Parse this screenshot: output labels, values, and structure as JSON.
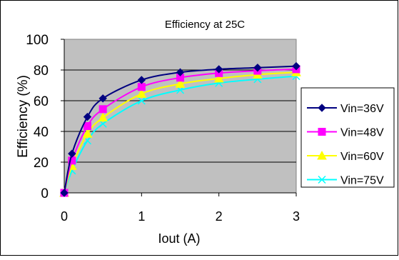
{
  "chart_data": {
    "type": "line",
    "title": "Efficiency at 25C",
    "xlabel": "Iout (A)",
    "ylabel": "Efficiency (%)",
    "xlim": [
      0,
      3
    ],
    "ylim": [
      0,
      100
    ],
    "xticks": [
      "0",
      "1",
      "2",
      "3"
    ],
    "yticks": [
      "0",
      "20",
      "40",
      "60",
      "80",
      "100"
    ],
    "grid": true,
    "legend_position": "right",
    "plot_background": "#c0c0c0",
    "x": [
      0,
      0.1,
      0.3,
      0.5,
      1.0,
      1.5,
      2.0,
      2.5,
      3.0
    ],
    "series": [
      {
        "name": "Vin=36V",
        "color": "#000080",
        "marker": "diamond",
        "values": [
          0,
          25.5,
          49.5,
          61.5,
          73.5,
          78.5,
          80.5,
          81.5,
          82.5
        ]
      },
      {
        "name": "Vin=48V",
        "color": "#ff00ff",
        "marker": "square",
        "values": [
          0,
          21,
          43.5,
          54.5,
          69,
          75,
          78,
          79.5,
          80.5
        ]
      },
      {
        "name": "Vin=60V",
        "color": "#ffff00",
        "marker": "triangle",
        "values": [
          0,
          17.5,
          38.5,
          49,
          64.5,
          71,
          74.5,
          77,
          78.5
        ]
      },
      {
        "name": "Vin=75V",
        "color": "#00ffff",
        "marker": "x",
        "values": [
          0,
          14.5,
          34,
          45,
          60,
          67,
          71.5,
          74,
          76
        ]
      }
    ]
  }
}
